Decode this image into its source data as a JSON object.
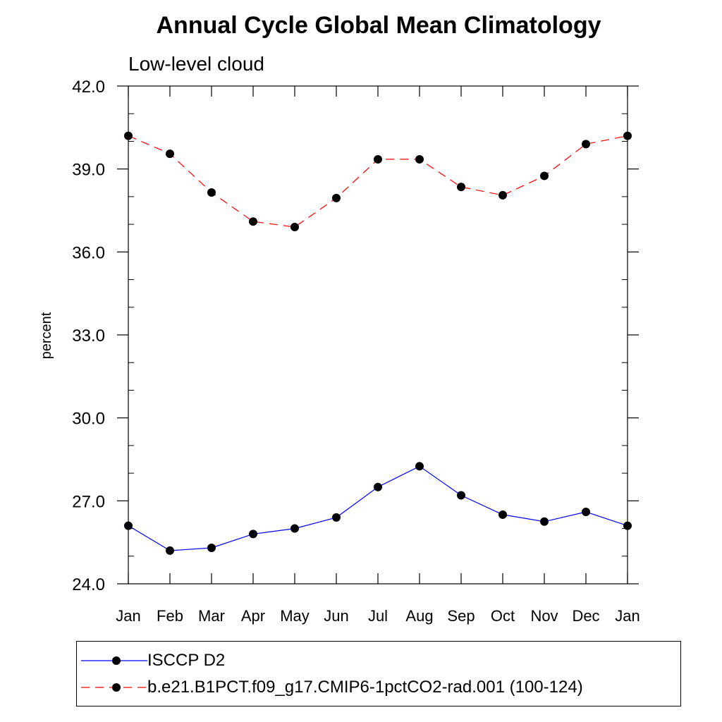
{
  "chart_data": {
    "type": "line",
    "title": "Annual Cycle Global Mean Climatology",
    "subtitle": "Low-level cloud",
    "xlabel": "",
    "ylabel": "percent",
    "categories": [
      "Jan",
      "Feb",
      "Mar",
      "Apr",
      "May",
      "Jun",
      "Jul",
      "Aug",
      "Sep",
      "Oct",
      "Nov",
      "Dec",
      "Jan"
    ],
    "ylim": [
      24.0,
      42.0
    ],
    "yticks": [
      "24.0",
      "27.0",
      "30.0",
      "33.0",
      "36.0",
      "39.0",
      "42.0"
    ],
    "ytick_values": [
      24,
      27,
      30,
      33,
      36,
      39,
      42
    ],
    "yminor_step": 1.0,
    "grid": false,
    "legend_position": "bottom",
    "series": [
      {
        "name": "ISCCP D2",
        "color": "#0000ff",
        "style": "solid",
        "marker": "filled-circle",
        "values": [
          26.1,
          25.2,
          25.3,
          25.8,
          26.0,
          26.4,
          27.5,
          28.25,
          27.2,
          26.5,
          26.25,
          26.6,
          26.1
        ]
      },
      {
        "name": "b.e21.B1PCT.f09_g17.CMIP6-1pctCO2-rad.001 (100-124)",
        "color": "#ff0000",
        "style": "dashed",
        "marker": "filled-circle",
        "values": [
          40.2,
          39.55,
          38.15,
          37.1,
          36.9,
          37.95,
          39.35,
          39.35,
          38.35,
          38.05,
          38.75,
          39.9,
          40.2
        ]
      }
    ]
  }
}
